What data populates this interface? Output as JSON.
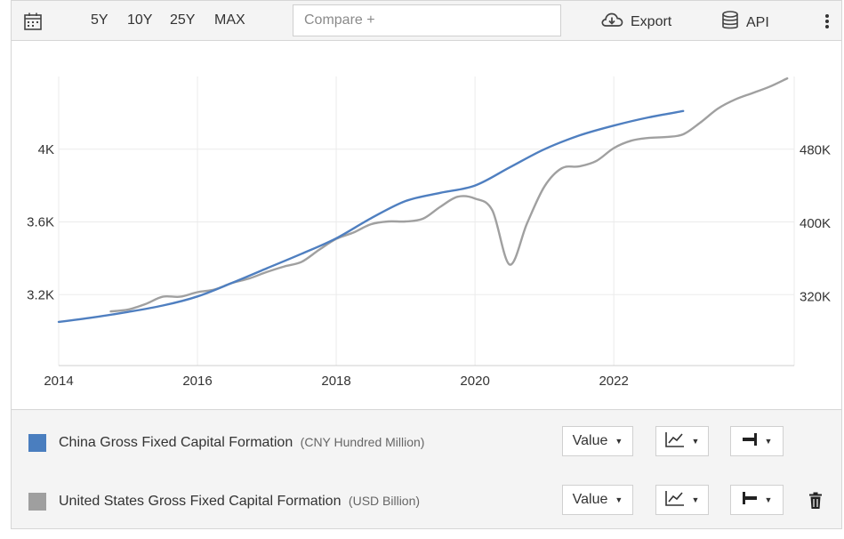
{
  "toolbar": {
    "ranges": [
      "5Y",
      "10Y",
      "25Y",
      "MAX"
    ],
    "compare_placeholder": "Compare +",
    "export_label": "Export",
    "api_label": "API"
  },
  "chart_data": {
    "type": "line",
    "x_ticks": [
      "2014",
      "2016",
      "2018",
      "2020",
      "2022"
    ],
    "y_left_ticks": [
      "4K",
      "3.6K",
      "3.2K"
    ],
    "y_right_ticks": [
      "480K",
      "400K",
      "320K"
    ],
    "xlim": [
      2014.0,
      2024.6
    ],
    "ylim_left": [
      2810,
      4400
    ],
    "ylim_right": [
      245000,
      560000
    ],
    "grid": true,
    "series": [
      {
        "name": "China Gross Fixed Capital Formation",
        "axis": "left",
        "color": "#4f7fc0",
        "x": [
          2014.0,
          2014.5,
          2015.0,
          2015.5,
          2016.0,
          2016.5,
          2017.0,
          2017.5,
          2018.0,
          2018.5,
          2019.0,
          2019.5,
          2020.0,
          2020.5,
          2021.0,
          2021.5,
          2022.0,
          2022.5,
          2023.0
        ],
        "y": [
          3050,
          3075,
          3105,
          3140,
          3190,
          3265,
          3345,
          3425,
          3510,
          3620,
          3715,
          3760,
          3800,
          3900,
          4000,
          4075,
          4130,
          4175,
          4210
        ]
      },
      {
        "name": "United States Gross Fixed Capital Formation",
        "axis": "right",
        "color": "#a0a0a0",
        "x": [
          2014.75,
          2015.0,
          2015.25,
          2015.5,
          2015.75,
          2016.0,
          2016.25,
          2016.5,
          2016.75,
          2017.0,
          2017.25,
          2017.5,
          2017.75,
          2018.0,
          2018.25,
          2018.5,
          2018.75,
          2019.0,
          2019.25,
          2019.5,
          2019.75,
          2020.0,
          2020.25,
          2020.5,
          2020.75,
          2021.0,
          2021.25,
          2021.5,
          2021.75,
          2022.0,
          2022.25,
          2022.5,
          2022.75,
          2023.0,
          2023.25,
          2023.5,
          2023.75,
          2024.0,
          2024.25,
          2024.5
        ],
        "y": [
          304000,
          306000,
          312000,
          320000,
          320000,
          325000,
          328000,
          335000,
          340000,
          347000,
          353000,
          358000,
          371000,
          383000,
          390000,
          399000,
          402000,
          402000,
          405000,
          418000,
          429000,
          427000,
          414000,
          355000,
          400000,
          440000,
          460000,
          462000,
          468000,
          482000,
          490000,
          493000,
          494000,
          497000,
          510000,
          525000,
          535000,
          542000,
          549000,
          558000
        ]
      }
    ]
  },
  "legend": [
    {
      "name": "China Gross Fixed Capital Formation",
      "unit": "(CNY Hundred Million)",
      "color": "#4a7ebf",
      "type_value": "Value"
    },
    {
      "name": "United States Gross Fixed Capital Formation",
      "unit": "(USD Billion)",
      "color": "#9f9f9f",
      "type_value": "Value"
    }
  ]
}
